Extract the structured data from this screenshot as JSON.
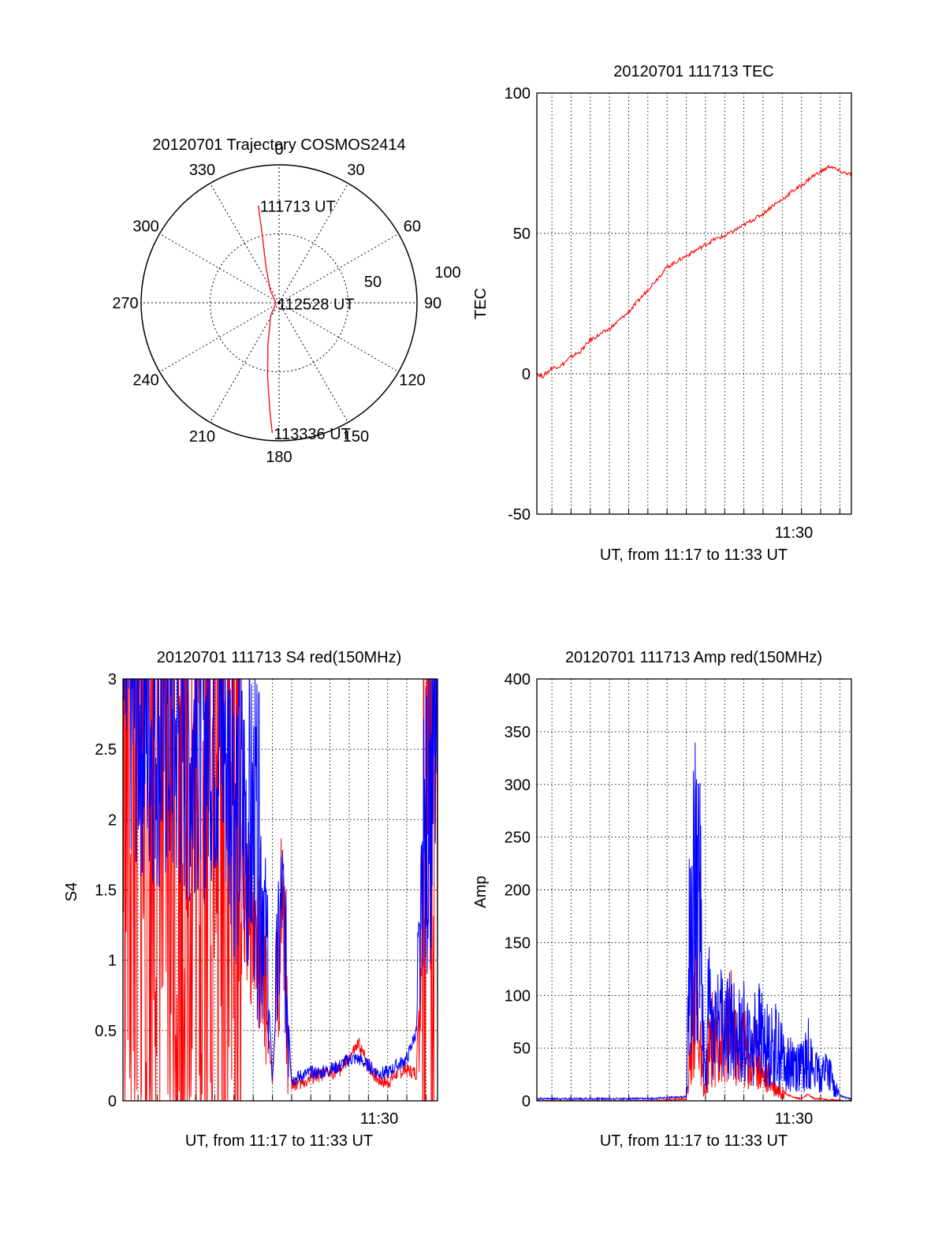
{
  "colors": {
    "red": "#ff0000",
    "blue": "#0000ff",
    "axis": "#000000",
    "grid": "#000000"
  },
  "chart_data": [
    {
      "type": "polar-trajectory",
      "title": "20120701 Trajectory COSMOS2414",
      "azimuth_labels": [
        "0",
        "30",
        "60",
        "90",
        "120",
        "150",
        "180",
        "210",
        "240",
        "270",
        "300",
        "330"
      ],
      "ring_labels": [
        "50",
        "100"
      ],
      "rings": [
        50,
        100
      ],
      "grid": true,
      "trajectory": {
        "points": [
          {
            "az": 348,
            "el": 25
          },
          {
            "az": 346,
            "el": 45
          },
          {
            "az": 340,
            "el": 65
          },
          {
            "az": 325,
            "el": 80
          },
          {
            "az": 265,
            "el": 88
          },
          {
            "az": 213,
            "el": 80
          },
          {
            "az": 195,
            "el": 62
          },
          {
            "az": 189,
            "el": 42
          },
          {
            "az": 185,
            "el": 20
          },
          {
            "az": 183,
            "el": 5
          }
        ],
        "labels": [
          {
            "text": "111713 UT",
            "az": 348,
            "el": 25
          },
          {
            "text": "112528 UT",
            "az": 262,
            "el": 88
          },
          {
            "text": "113336 UT",
            "az": 183,
            "el": 5
          }
        ]
      }
    },
    {
      "type": "line",
      "title": "20120701 111713 TEC",
      "xlabel": "UT, from 11:17 to 11:33 UT",
      "ylabel": "TEC",
      "xlim": [
        "11:17:13",
        "11:33:36"
      ],
      "ylim": [
        -50,
        100
      ],
      "yticks": [
        "100",
        "50",
        "0",
        "-50"
      ],
      "xtick_label": "11:30",
      "grid": true,
      "series": [
        {
          "color": "red",
          "x": [
            "11:17:13",
            "11:17:30",
            "11:18:00",
            "11:18:30",
            "11:19:00",
            "11:19:30",
            "11:20:00",
            "11:20:30",
            "11:21:00",
            "11:21:30",
            "11:22:00",
            "11:22:30",
            "11:23:00",
            "11:23:30",
            "11:24:00",
            "11:24:30",
            "11:25:00",
            "11:25:30",
            "11:26:00",
            "11:26:30",
            "11:27:00",
            "11:27:30",
            "11:28:00",
            "11:28:30",
            "11:29:00",
            "11:29:30",
            "11:30:00",
            "11:30:30",
            "11:31:00",
            "11:31:30",
            "11:32:00",
            "11:32:30",
            "11:33:00",
            "11:33:36"
          ],
          "values": [
            0,
            -1,
            2,
            3,
            6,
            8,
            12,
            14,
            16,
            19,
            22,
            26,
            30,
            34,
            38,
            40,
            42,
            44,
            46,
            48,
            49,
            51,
            53,
            55,
            57,
            60,
            62,
            65,
            67,
            70,
            72,
            74,
            72,
            71
          ]
        }
      ]
    },
    {
      "type": "line",
      "title": "20120701 111713 S4 red(150MHz)",
      "xlabel": "UT, from 11:17 to 11:33 UT",
      "ylabel": "S4",
      "xlim": [
        "11:17:13",
        "11:33:36"
      ],
      "ylim": [
        0,
        3
      ],
      "yticks": [
        "3",
        "2.5",
        "2",
        "1.5",
        "1",
        "0.5",
        "0"
      ],
      "xtick_label": "11:30",
      "grid": true,
      "series": [
        {
          "color": "red",
          "x": [
            "11:17:13",
            "11:18:00",
            "11:19:00",
            "11:20:00",
            "11:21:00",
            "11:22:00",
            "11:22:30",
            "11:23:00",
            "11:24:00",
            "11:24:30",
            "11:25:00",
            "11:25:30",
            "11:26:00",
            "11:26:30",
            "11:27:00",
            "11:27:30",
            "11:28:00",
            "11:28:30",
            "11:29:00",
            "11:29:30",
            "11:30:00",
            "11:30:30",
            "11:31:00",
            "11:31:30",
            "11:32:00",
            "11:32:30",
            "11:33:00",
            "11:33:36"
          ],
          "values": [
            2.6,
            1.8,
            2.2,
            1.6,
            2.0,
            2.3,
            2.1,
            1.7,
            1.2,
            0.9,
            0.15,
            1.4,
            0.12,
            0.12,
            0.16,
            0.18,
            0.2,
            0.22,
            0.3,
            0.4,
            0.25,
            0.15,
            0.13,
            0.2,
            0.22,
            0.2,
            2.2,
            2.8
          ]
        },
        {
          "color": "blue",
          "x": [
            "11:17:13",
            "11:18:00",
            "11:19:00",
            "11:20:00",
            "11:21:00",
            "11:22:00",
            "11:22:30",
            "11:23:00",
            "11:24:00",
            "11:24:30",
            "11:25:00",
            "11:25:30",
            "11:26:00",
            "11:26:30",
            "11:27:00",
            "11:27:30",
            "11:28:00",
            "11:28:30",
            "11:29:00",
            "11:29:30",
            "11:30:00",
            "11:30:30",
            "11:31:00",
            "11:31:30",
            "11:32:00",
            "11:32:30",
            "11:33:00",
            "11:33:36"
          ],
          "values": [
            2.9,
            2.8,
            2.7,
            2.6,
            2.5,
            2.7,
            2.6,
            2.2,
            1.9,
            1.6,
            0.15,
            1.5,
            0.15,
            0.18,
            0.2,
            0.2,
            0.22,
            0.25,
            0.3,
            0.3,
            0.25,
            0.2,
            0.2,
            0.25,
            0.3,
            0.5,
            1.9,
            2.6
          ]
        }
      ]
    },
    {
      "type": "line",
      "title": "20120701 111713 Amp red(150MHz)",
      "xlabel": "UT, from 11:17 to 11:33 UT",
      "ylabel": "Amp",
      "xlim": [
        "11:17:13",
        "11:33:36"
      ],
      "ylim": [
        0,
        400
      ],
      "yticks": [
        "400",
        "350",
        "300",
        "250",
        "200",
        "150",
        "100",
        "50",
        "0"
      ],
      "xtick_label": "11:30",
      "grid": true,
      "series": [
        {
          "color": "red",
          "x": [
            "11:17:13",
            "11:18:00",
            "11:19:00",
            "11:20:00",
            "11:21:00",
            "11:22:00",
            "11:23:00",
            "11:24:00",
            "11:25:00",
            "11:25:10",
            "11:25:20",
            "11:25:30",
            "11:25:40",
            "11:25:50",
            "11:26:00",
            "11:26:10",
            "11:26:20",
            "11:26:40",
            "11:27:00",
            "11:27:20",
            "11:27:40",
            "11:28:00",
            "11:28:20",
            "11:28:40",
            "11:29:00",
            "11:29:20",
            "11:29:40",
            "11:30:00",
            "11:30:20",
            "11:30:40",
            "11:31:00",
            "11:31:20",
            "11:31:40",
            "11:32:00",
            "11:32:20",
            "11:32:40",
            "11:33:00",
            "11:33:36"
          ],
          "values": [
            0,
            0,
            0,
            0,
            0,
            0,
            0,
            1,
            2,
            40,
            110,
            160,
            90,
            30,
            5,
            60,
            85,
            80,
            75,
            100,
            60,
            80,
            40,
            70,
            30,
            25,
            15,
            10,
            5,
            3,
            2,
            6,
            2,
            2,
            1,
            1,
            0,
            0
          ]
        },
        {
          "color": "blue",
          "x": [
            "11:17:13",
            "11:18:00",
            "11:19:00",
            "11:20:00",
            "11:21:00",
            "11:22:00",
            "11:23:00",
            "11:24:00",
            "11:25:00",
            "11:25:10",
            "11:25:20",
            "11:25:30",
            "11:25:40",
            "11:25:50",
            "11:26:00",
            "11:26:10",
            "11:26:20",
            "11:26:40",
            "11:27:00",
            "11:27:20",
            "11:27:40",
            "11:28:00",
            "11:28:20",
            "11:28:40",
            "11:29:00",
            "11:29:20",
            "11:29:40",
            "11:30:00",
            "11:30:20",
            "11:30:40",
            "11:31:00",
            "11:31:20",
            "11:31:40",
            "11:32:00",
            "11:32:20",
            "11:32:40",
            "11:33:00",
            "11:33:36"
          ],
          "values": [
            2,
            2,
            2,
            2,
            2,
            2,
            2,
            3,
            4,
            200,
            315,
            260,
            365,
            120,
            10,
            150,
            95,
            115,
            90,
            105,
            85,
            95,
            70,
            100,
            80,
            70,
            75,
            60,
            55,
            50,
            45,
            70,
            35,
            30,
            40,
            20,
            5,
            2
          ]
        }
      ]
    }
  ]
}
